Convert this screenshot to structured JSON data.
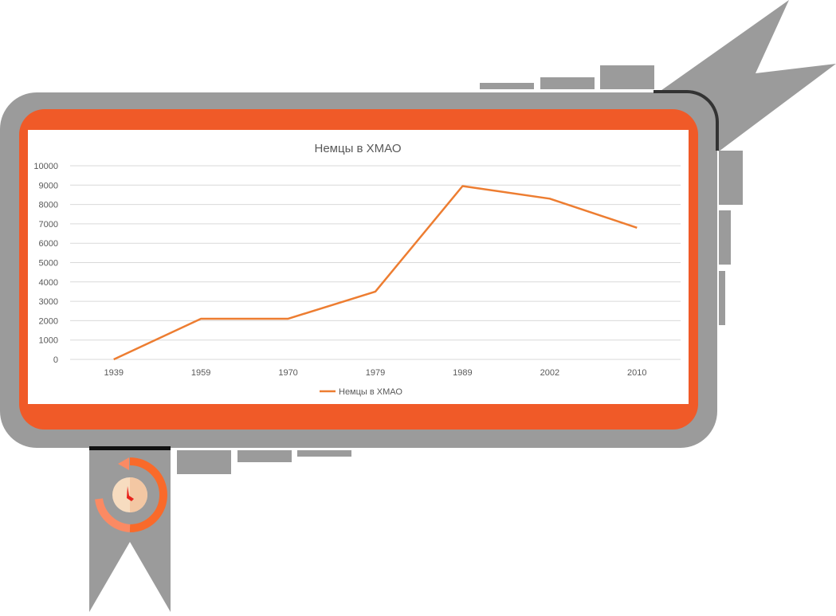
{
  "colors": {
    "frame_gray": "#9b9b9b",
    "frame_orange": "#f05a28",
    "line": "#ed7d31",
    "grid": "#d9d9d9",
    "text": "#595959",
    "clock_outer": "#f96a2a",
    "clock_outer_light": "#fb8a63",
    "clock_face": "#f7dcc0",
    "clock_hand": "#e8231c"
  },
  "icons": {
    "clock": "clock-icon",
    "lightning": "lightning-icon",
    "bookmark": "bookmark-ribbon-icon"
  },
  "chart_data": {
    "type": "line",
    "title": "Немцы в ХМАО",
    "xlabel": "",
    "ylabel": "",
    "x_ticks": [
      "1939",
      "1959",
      "1970",
      "1979",
      "1989",
      "2002",
      "2010"
    ],
    "ylim": [
      0,
      10000
    ],
    "y_ticks": [
      0,
      1000,
      2000,
      3000,
      4000,
      5000,
      6000,
      7000,
      8000,
      9000,
      10000
    ],
    "grid": true,
    "legend_position": "bottom",
    "series": [
      {
        "name": "Немцы в ХМАО",
        "x": [
          "1939",
          "1959",
          "1970",
          "1979",
          "1989",
          "2002",
          "2010"
        ],
        "values": [
          0,
          2100,
          2100,
          3500,
          8950,
          8300,
          6800
        ]
      }
    ]
  }
}
